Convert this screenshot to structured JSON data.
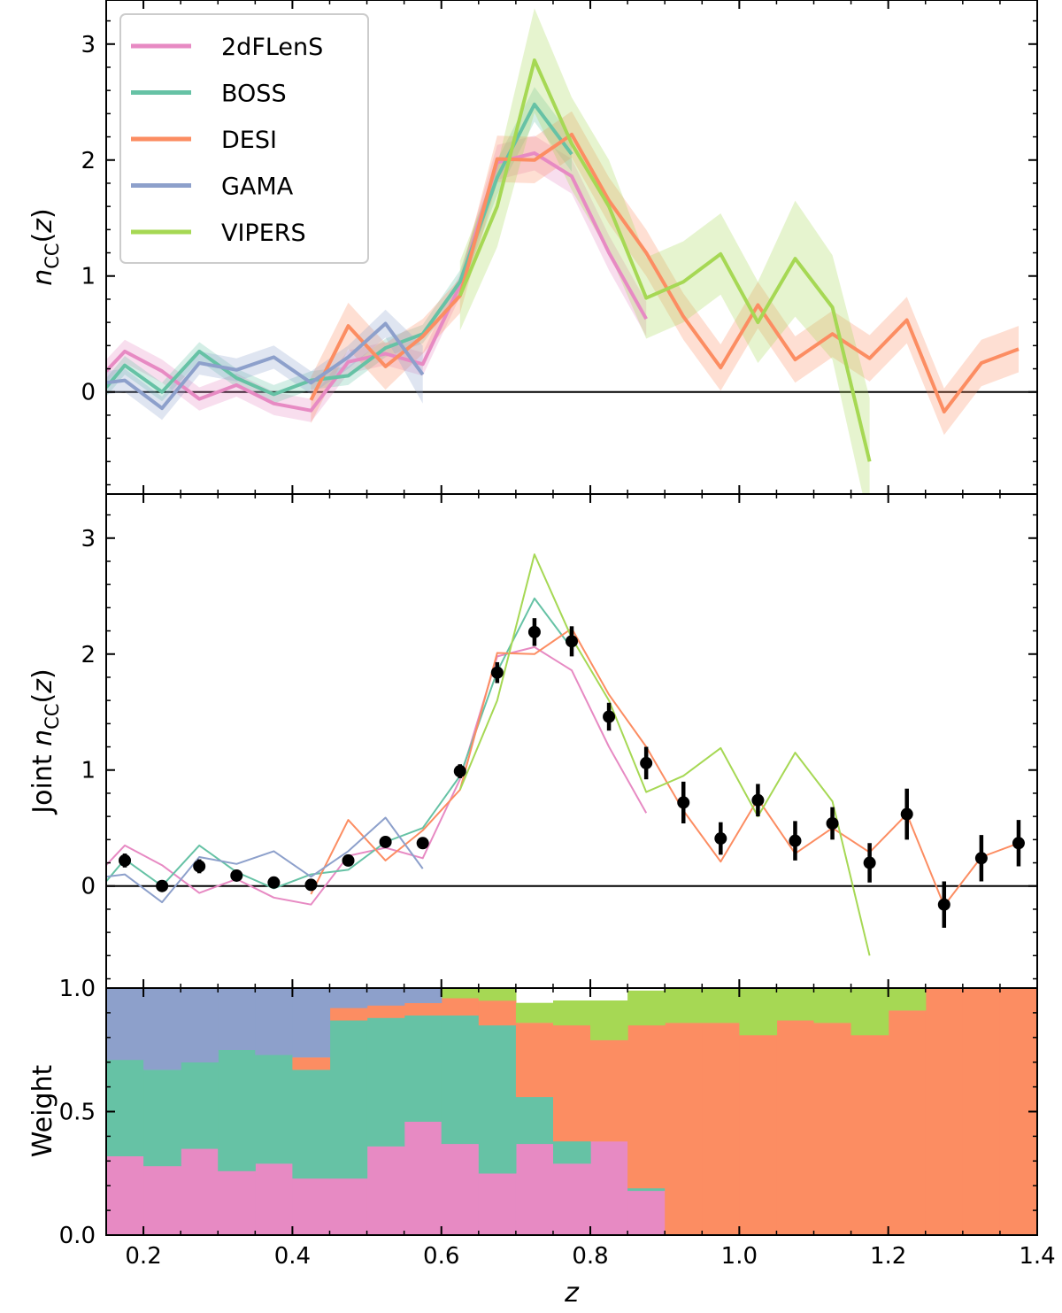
{
  "chart_data": [
    {
      "type": "line",
      "panel": "top",
      "ylabel": "n_CC(z)",
      "xlim": [
        0.15,
        1.4
      ],
      "ylim": [
        -0.88,
        3.38
      ],
      "yticks": [
        0,
        1,
        2,
        3
      ],
      "zero_line": true,
      "legend": {
        "position": "top-left",
        "entries": [
          "2dFLenS",
          "BOSS",
          "DESI",
          "GAMA",
          "VIPERS"
        ]
      },
      "series": [
        {
          "name": "2dFLenS",
          "color": "#e78ac3",
          "x": [
            0.15,
            0.175,
            0.225,
            0.275,
            0.325,
            0.375,
            0.425,
            0.475,
            0.525,
            0.575,
            0.625,
            0.675,
            0.725,
            0.775,
            0.825,
            0.875
          ],
          "y": [
            0.18,
            0.35,
            0.18,
            -0.06,
            0.06,
            -0.1,
            -0.16,
            0.26,
            0.33,
            0.24,
            0.92,
            1.98,
            2.06,
            1.86,
            1.2,
            0.63
          ],
          "err": [
            0.1,
            0.1,
            0.1,
            0.1,
            0.1,
            0.1,
            0.1,
            0.1,
            0.1,
            0.1,
            0.1,
            0.15,
            0.15,
            0.15,
            0.15,
            0.15
          ]
        },
        {
          "name": "BOSS",
          "color": "#66c2a5",
          "x": [
            0.15,
            0.175,
            0.225,
            0.275,
            0.325,
            0.375,
            0.425,
            0.475,
            0.525,
            0.575,
            0.625,
            0.675,
            0.725,
            0.775
          ],
          "y": [
            0.04,
            0.23,
            0.0,
            0.35,
            0.12,
            -0.02,
            0.1,
            0.14,
            0.38,
            0.5,
            0.95,
            1.85,
            2.48,
            2.05
          ],
          "err": [
            0.08,
            0.08,
            0.08,
            0.08,
            0.08,
            0.08,
            0.08,
            0.08,
            0.08,
            0.08,
            0.1,
            0.15,
            0.15,
            0.15
          ]
        },
        {
          "name": "DESI",
          "color": "#fc8d62",
          "x": [
            0.425,
            0.475,
            0.525,
            0.575,
            0.625,
            0.675,
            0.725,
            0.775,
            0.825,
            0.875,
            0.925,
            0.975,
            1.025,
            1.075,
            1.125,
            1.175,
            1.225,
            1.275,
            1.325,
            1.375
          ],
          "y": [
            -0.07,
            0.57,
            0.22,
            0.48,
            0.83,
            2.01,
            2.0,
            2.22,
            1.65,
            1.2,
            0.65,
            0.21,
            0.75,
            0.28,
            0.5,
            0.29,
            0.62,
            -0.17,
            0.25,
            0.37
          ],
          "err": [
            0.2,
            0.2,
            0.2,
            0.15,
            0.15,
            0.2,
            0.2,
            0.2,
            0.2,
            0.2,
            0.2,
            0.2,
            0.2,
            0.2,
            0.2,
            0.2,
            0.2,
            0.2,
            0.2,
            0.2
          ]
        },
        {
          "name": "GAMA",
          "color": "#8da0cb",
          "x": [
            0.15,
            0.175,
            0.225,
            0.275,
            0.325,
            0.375,
            0.425,
            0.475,
            0.525,
            0.575
          ],
          "y": [
            0.08,
            0.1,
            -0.14,
            0.25,
            0.19,
            0.3,
            0.08,
            0.3,
            0.59,
            0.15
          ],
          "err": [
            0.1,
            0.1,
            0.1,
            0.1,
            0.1,
            0.1,
            0.1,
            0.1,
            0.12,
            0.25
          ]
        },
        {
          "name": "VIPERS",
          "color": "#a6d854",
          "x": [
            0.625,
            0.675,
            0.725,
            0.775,
            0.825,
            0.875,
            0.925,
            0.975,
            1.025,
            1.075,
            1.125,
            1.175
          ],
          "y": [
            0.83,
            1.6,
            2.86,
            2.14,
            1.6,
            0.81,
            0.95,
            1.19,
            0.6,
            1.15,
            0.73,
            -0.6
          ],
          "err": [
            0.3,
            0.35,
            0.45,
            0.4,
            0.4,
            0.35,
            0.35,
            0.35,
            0.35,
            0.5,
            0.45,
            0.55
          ]
        }
      ]
    },
    {
      "type": "line",
      "panel": "middle",
      "ylabel": "Joint n_CC(z)",
      "xlim": [
        0.15,
        1.4
      ],
      "ylim": [
        -0.88,
        3.38
      ],
      "yticks": [
        0,
        1,
        2,
        3
      ],
      "zero_line": true,
      "joint": {
        "name": "Joint",
        "color": "#000000",
        "x": [
          0.175,
          0.225,
          0.275,
          0.325,
          0.375,
          0.425,
          0.475,
          0.525,
          0.575,
          0.625,
          0.675,
          0.725,
          0.775,
          0.825,
          0.875,
          0.925,
          0.975,
          1.025,
          1.075,
          1.125,
          1.175,
          1.225,
          1.275,
          1.325,
          1.375
        ],
        "y": [
          0.22,
          0.0,
          0.17,
          0.09,
          0.03,
          0.01,
          0.22,
          0.38,
          0.37,
          0.99,
          1.84,
          2.19,
          2.11,
          1.46,
          1.06,
          0.72,
          0.41,
          0.74,
          0.39,
          0.54,
          0.2,
          0.62,
          -0.16,
          0.24,
          0.37
        ],
        "err": [
          0.06,
          0.04,
          0.06,
          0.05,
          0.05,
          0.05,
          0.05,
          0.05,
          0.05,
          0.06,
          0.09,
          0.12,
          0.13,
          0.12,
          0.14,
          0.18,
          0.14,
          0.14,
          0.17,
          0.14,
          0.17,
          0.22,
          0.2,
          0.2,
          0.2
        ]
      }
    },
    {
      "type": "area",
      "panel": "bottom",
      "ylabel": "Weight",
      "xlabel": "z",
      "xlim": [
        0.15,
        1.4
      ],
      "ylim": [
        0.0,
        1.0
      ],
      "yticks": [
        0.0,
        0.5,
        1.0
      ],
      "xticks": [
        0.2,
        0.4,
        0.6,
        0.8,
        1.0,
        1.2,
        1.4
      ],
      "stack_order": [
        "2dFLenS",
        "BOSS",
        "DESI",
        "VIPERS",
        "GAMA"
      ],
      "bin_edges": [
        0.15,
        0.2,
        0.25,
        0.3,
        0.35,
        0.4,
        0.45,
        0.5,
        0.55,
        0.6,
        0.65,
        0.7,
        0.75,
        0.8,
        0.85,
        0.9,
        0.95,
        1.0,
        1.05,
        1.1,
        1.15,
        1.2,
        1.25,
        1.3,
        1.35,
        1.4
      ],
      "weights": {
        "2dFLenS": [
          0.32,
          0.28,
          0.35,
          0.26,
          0.29,
          0.23,
          0.23,
          0.36,
          0.46,
          0.37,
          0.25,
          0.37,
          0.29,
          0.38,
          0.18,
          0,
          0,
          0,
          0,
          0,
          0,
          0,
          0,
          0,
          0
        ],
        "BOSS": [
          0.39,
          0.39,
          0.35,
          0.49,
          0.44,
          0.44,
          0.64,
          0.52,
          0.43,
          0.52,
          0.6,
          0.19,
          0.09,
          0,
          0.01,
          0,
          0,
          0,
          0,
          0,
          0,
          0,
          0,
          0,
          0
        ],
        "DESI": [
          0,
          0,
          0,
          0,
          0,
          0.05,
          0.05,
          0.05,
          0.05,
          0.07,
          0.1,
          0.3,
          0.47,
          0.41,
          0.66,
          0.86,
          0.86,
          0.81,
          0.87,
          0.86,
          0.81,
          0.91,
          1.0,
          1.0,
          1.0
        ],
        "VIPERS": [
          0,
          0,
          0,
          0,
          0,
          0,
          0,
          0,
          0,
          0.04,
          0.05,
          0.08,
          0.1,
          0.16,
          0.14,
          0.14,
          0.14,
          0.19,
          0.13,
          0.14,
          0.19,
          0.09,
          0,
          0,
          0
        ],
        "GAMA": [
          0.29,
          0.33,
          0.3,
          0.25,
          0.27,
          0.28,
          0.08,
          0.07,
          0.06,
          0,
          0,
          0,
          0,
          0,
          0,
          0,
          0,
          0,
          0,
          0,
          0,
          0,
          0,
          0,
          0
        ]
      }
    }
  ]
}
